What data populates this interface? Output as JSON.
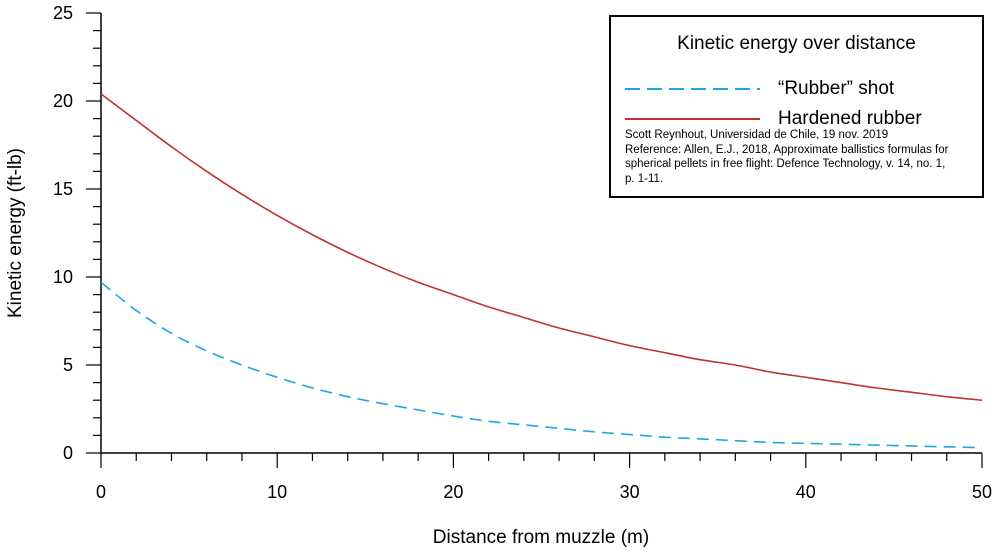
{
  "chart_data": {
    "type": "line",
    "xlabel": "Distance from muzzle (m)",
    "ylabel": "Kinetic energy (ft-lb)",
    "xlim": [
      0,
      50
    ],
    "ylim": [
      0,
      25
    ],
    "xticks": [
      "0",
      "10",
      "20",
      "30",
      "40",
      "50"
    ],
    "yticks": [
      "0",
      "5",
      "10",
      "15",
      "20",
      "25"
    ],
    "legend": {
      "title": "Kinetic energy over distance",
      "position": "top-right"
    },
    "series": [
      {
        "name": "“Rubber” shot",
        "style": "dashed",
        "color": "#1aa9de",
        "x": [
          0,
          2,
          4,
          6,
          8,
          10,
          12,
          14,
          16,
          18,
          20,
          22,
          24,
          26,
          28,
          30,
          32,
          34,
          36,
          38,
          40,
          42,
          44,
          46,
          48,
          50
        ],
        "y": [
          9.7,
          8.1,
          6.8,
          5.8,
          5.0,
          4.3,
          3.7,
          3.2,
          2.8,
          2.45,
          2.1,
          1.8,
          1.6,
          1.4,
          1.2,
          1.05,
          0.9,
          0.8,
          0.7,
          0.6,
          0.55,
          0.5,
          0.45,
          0.4,
          0.35,
          0.3
        ]
      },
      {
        "name": "Hardened rubber",
        "style": "solid",
        "color": "#c0322e",
        "x": [
          0,
          2,
          4,
          6,
          8,
          10,
          12,
          14,
          16,
          18,
          20,
          22,
          24,
          26,
          28,
          30,
          32,
          34,
          36,
          38,
          40,
          42,
          44,
          46,
          48,
          50
        ],
        "y": [
          20.4,
          18.9,
          17.4,
          16.0,
          14.7,
          13.5,
          12.4,
          11.4,
          10.5,
          9.7,
          9.0,
          8.3,
          7.7,
          7.1,
          6.6,
          6.1,
          5.7,
          5.3,
          5.0,
          4.6,
          4.3,
          4.0,
          3.7,
          3.45,
          3.2,
          3.0
        ]
      }
    ],
    "annotation": [
      "Scott Reynhout, Universidad de Chile, 19 nov. 2019",
      "Reference: Allen, E.J., 2018, Approximate ballistics formulas for",
      "spherical pellets in free flight: Defence Technology, v. 14, no. 1,",
      "p. 1-11."
    ]
  }
}
